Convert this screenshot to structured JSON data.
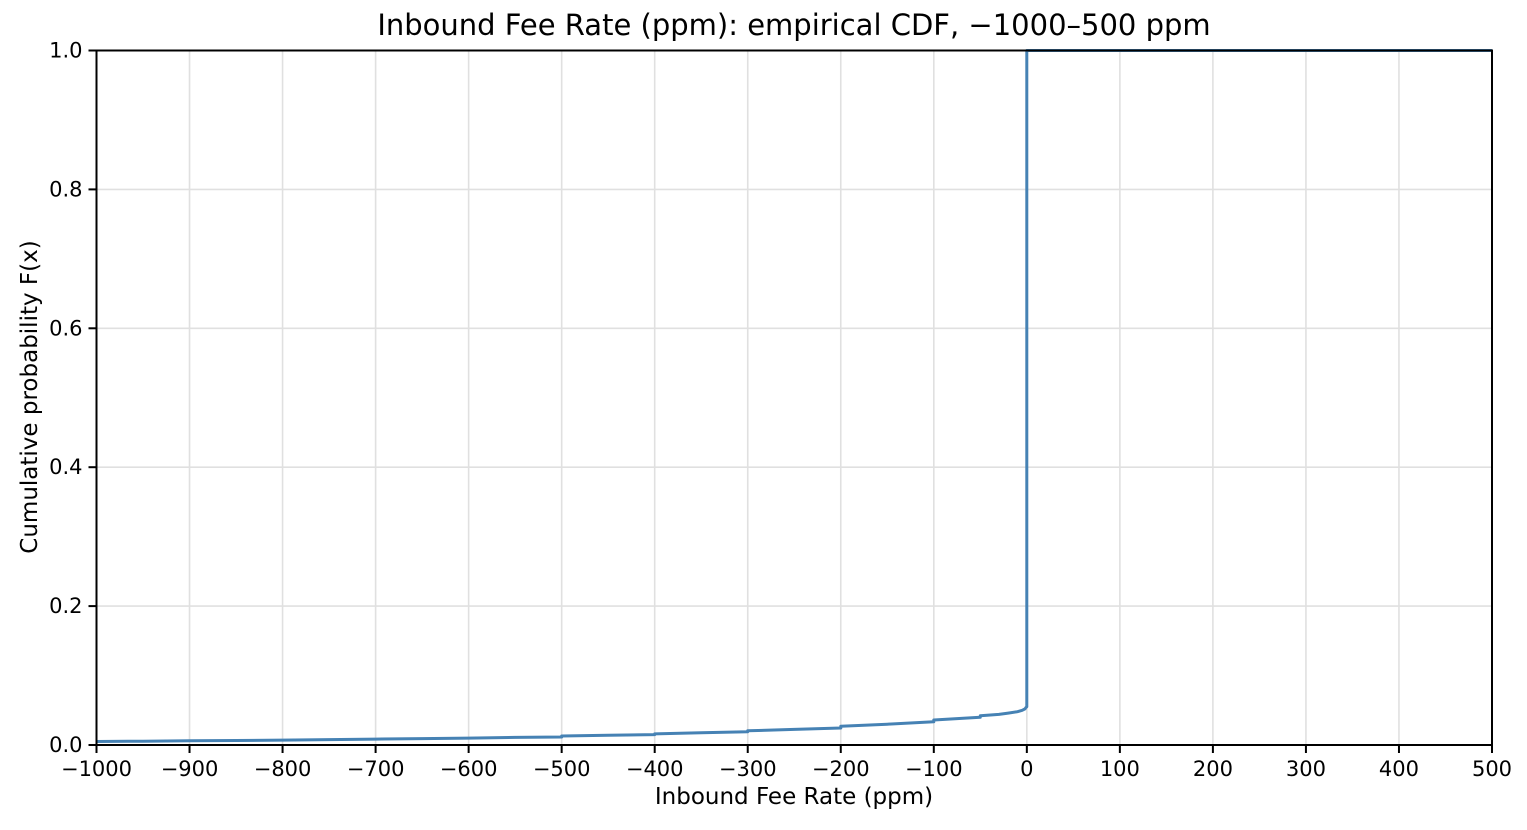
{
  "figure": {
    "background": "#ffffff"
  },
  "chart_data": {
    "type": "line",
    "subtype": "empirical_cdf_step",
    "title": "Inbound Fee Rate (ppm): empirical CDF, −1000–500 ppm",
    "xlabel": "Inbound Fee Rate (ppm)",
    "ylabel": "Cumulative probability F(x)",
    "xlim": [
      -1000,
      500
    ],
    "ylim": [
      0.0,
      1.0
    ],
    "xticks": [
      -1000,
      -900,
      -800,
      -700,
      -600,
      -500,
      -400,
      -300,
      -200,
      -100,
      0,
      100,
      200,
      300,
      400,
      500
    ],
    "xtick_labels": [
      "−1000",
      "−900",
      "−800",
      "−700",
      "−600",
      "−500",
      "−400",
      "−300",
      "−200",
      "−100",
      "0",
      "100",
      "200",
      "300",
      "400",
      "500"
    ],
    "yticks": [
      0.0,
      0.2,
      0.4,
      0.6,
      0.8,
      1.0
    ],
    "ytick_labels": [
      "0.0",
      "0.2",
      "0.4",
      "0.6",
      "0.8",
      "1.0"
    ],
    "grid": true,
    "legend": false,
    "colors": {
      "line": "#4682b4",
      "grid": "#e0e0e0",
      "spine": "#000000",
      "text": "#000000",
      "background": "#ffffff"
    },
    "series": [
      {
        "name": "empirical CDF",
        "points": [
          [
            -1000,
            0.005
          ],
          [
            -950,
            0.0055
          ],
          [
            -900,
            0.006
          ],
          [
            -850,
            0.0065
          ],
          [
            -800,
            0.007
          ],
          [
            -750,
            0.0078
          ],
          [
            -700,
            0.0085
          ],
          [
            -650,
            0.0092
          ],
          [
            -600,
            0.01
          ],
          [
            -550,
            0.011
          ],
          [
            -500,
            0.0115
          ],
          [
            -500,
            0.013
          ],
          [
            -450,
            0.014
          ],
          [
            -400,
            0.015
          ],
          [
            -400,
            0.016
          ],
          [
            -350,
            0.0175
          ],
          [
            -300,
            0.019
          ],
          [
            -300,
            0.0205
          ],
          [
            -250,
            0.0225
          ],
          [
            -200,
            0.0245
          ],
          [
            -200,
            0.027
          ],
          [
            -150,
            0.03
          ],
          [
            -100,
            0.0335
          ],
          [
            -100,
            0.036
          ],
          [
            -75,
            0.038
          ],
          [
            -50,
            0.04
          ],
          [
            -50,
            0.042
          ],
          [
            -30,
            0.044
          ],
          [
            -20,
            0.046
          ],
          [
            -10,
            0.048
          ],
          [
            -5,
            0.05
          ],
          [
            -2,
            0.052
          ],
          [
            -1,
            0.054
          ],
          [
            0,
            0.055
          ],
          [
            0,
            1.0
          ],
          [
            500,
            1.0
          ]
        ]
      }
    ],
    "annotations": {
      "jump_at_x": 0,
      "jump_from": 0.055,
      "jump_to": 1.0
    }
  }
}
